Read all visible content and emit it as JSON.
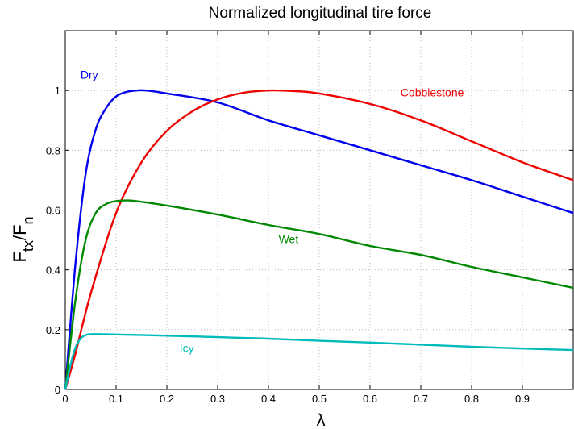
{
  "chart_data": {
    "type": "line",
    "title": "Normalized longitudinal tire force",
    "xlabel": "λ",
    "ylabel": {
      "main": "F",
      "sub1": "tx",
      "sep": "/F",
      "sub2": "n"
    },
    "xlim": [
      0,
      1
    ],
    "ylim": [
      0,
      1.2
    ],
    "xticks": [
      "0",
      "0.1",
      "0.2",
      "0.3",
      "0.4",
      "0.5",
      "0.6",
      "0.7",
      "0.8",
      "0.9"
    ],
    "yticks": [
      "0",
      "0.2",
      "0.4",
      "0.6",
      "0.8",
      "1"
    ],
    "grid": true,
    "series": [
      {
        "name": "Dry",
        "color": "#0000ee",
        "x": [
          0,
          0.02,
          0.04,
          0.06,
          0.08,
          0.1,
          0.12,
          0.14,
          0.16,
          0.2,
          0.3,
          0.4,
          0.5,
          0.6,
          0.7,
          0.8,
          0.9,
          1.0
        ],
        "y": [
          0,
          0.42,
          0.72,
          0.87,
          0.94,
          0.98,
          0.995,
          1.0,
          1.0,
          0.99,
          0.96,
          0.9,
          0.85,
          0.8,
          0.75,
          0.7,
          0.645,
          0.59
        ]
      },
      {
        "name": "Cobblestone",
        "color": "#ee0000",
        "x": [
          0,
          0.02,
          0.05,
          0.1,
          0.15,
          0.2,
          0.25,
          0.3,
          0.35,
          0.4,
          0.45,
          0.5,
          0.6,
          0.7,
          0.8,
          0.9,
          1.0
        ],
        "y": [
          0,
          0.12,
          0.32,
          0.59,
          0.76,
          0.865,
          0.93,
          0.97,
          0.992,
          1.0,
          0.998,
          0.99,
          0.955,
          0.9,
          0.83,
          0.76,
          0.7
        ]
      },
      {
        "name": "Wet",
        "color": "#008800",
        "x": [
          0,
          0.02,
          0.04,
          0.06,
          0.08,
          0.1,
          0.12,
          0.14,
          0.2,
          0.3,
          0.4,
          0.5,
          0.6,
          0.7,
          0.8,
          0.9,
          1.0
        ],
        "y": [
          0,
          0.3,
          0.5,
          0.59,
          0.62,
          0.63,
          0.632,
          0.63,
          0.615,
          0.585,
          0.55,
          0.52,
          0.48,
          0.45,
          0.41,
          0.375,
          0.34
        ]
      },
      {
        "name": "Icy",
        "color": "#00bbbb",
        "x": [
          0,
          0.01,
          0.02,
          0.03,
          0.04,
          0.05,
          0.07,
          0.1,
          0.2,
          0.3,
          0.4,
          0.5,
          0.6,
          0.7,
          0.8,
          0.9,
          1.0
        ],
        "y": [
          0,
          0.08,
          0.14,
          0.17,
          0.182,
          0.185,
          0.185,
          0.184,
          0.18,
          0.175,
          0.17,
          0.163,
          0.157,
          0.15,
          0.143,
          0.137,
          0.132
        ]
      }
    ],
    "annotations": [
      {
        "text": "Dry",
        "color": "#0000ee",
        "x": 0.03,
        "y": 1.04
      },
      {
        "text": "Cobblestone",
        "color": "#ee0000",
        "x": 0.66,
        "y": 0.98
      },
      {
        "text": "Wet",
        "color": "#008800",
        "x": 0.42,
        "y": 0.49
      },
      {
        "text": "Icy",
        "color": "#00bbbb",
        "x": 0.225,
        "y": 0.125
      }
    ]
  }
}
